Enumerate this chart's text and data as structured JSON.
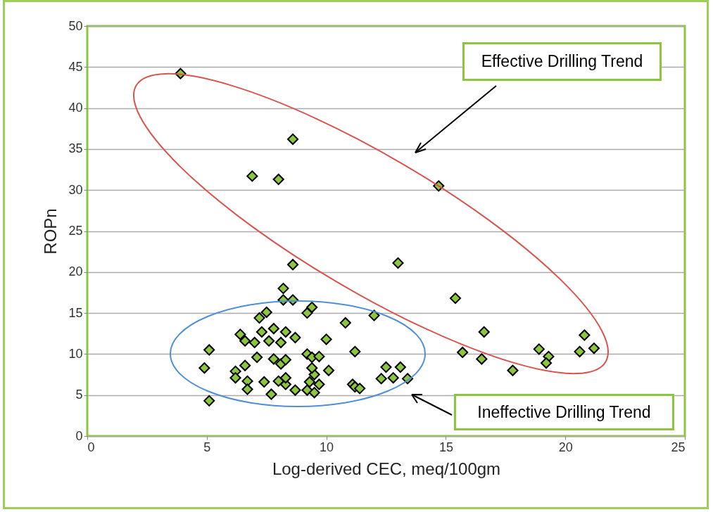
{
  "chart_data": {
    "type": "scatter",
    "xlabel": "Log-derived CEC, meq/100gm",
    "ylabel": "ROPn",
    "xlim": [
      0,
      25
    ],
    "xticks": [
      0,
      5,
      10,
      15,
      20,
      25
    ],
    "ylim": [
      0,
      50
    ],
    "yticks": [
      0,
      5,
      10,
      15,
      20,
      25,
      30,
      35,
      40,
      45,
      50
    ],
    "grid": "y",
    "marker": "diamond",
    "legend": false,
    "annotations": [
      "Effective Drilling Trend",
      "Ineffective Drilling Trend"
    ],
    "series": [
      {
        "color": "#8cc63f",
        "x": [
          3.9,
          8.6,
          6.9,
          8.0,
          14.7,
          8.6,
          13.0,
          8.2,
          12.0,
          15.4,
          10.8,
          15.7,
          16.6,
          16.5,
          17.8,
          18.9,
          19.3,
          19.2,
          20.6,
          20.8,
          21.2,
          11.2,
          10.0,
          10.1,
          11.1,
          11.2,
          11.4,
          12.5,
          13.1,
          12.3,
          12.8,
          13.4,
          8.2,
          8.6,
          9.2,
          9.4,
          7.5,
          7.2,
          7.3,
          7.8,
          8.3,
          8.7,
          6.4,
          6.6,
          7.0,
          7.6,
          8.1,
          5.1,
          4.9,
          5.1,
          7.1,
          7.8,
          8.1,
          8.3,
          9.2,
          9.4,
          9.7,
          6.6,
          6.2,
          6.2,
          6.7,
          6.7,
          7.4,
          8.0,
          8.3,
          7.7,
          8.7,
          9.3,
          9.5,
          9.7,
          9.2,
          9.5,
          9.4,
          8.3
        ],
        "values": [
          44.2,
          36.2,
          31.7,
          31.3,
          30.5,
          20.9,
          21.1,
          18.0,
          14.7,
          16.8,
          13.8,
          10.2,
          12.7,
          9.4,
          8.0,
          10.6,
          9.7,
          8.9,
          10.3,
          12.3,
          10.7,
          10.3,
          11.8,
          8.0,
          6.3,
          6.0,
          5.8,
          8.4,
          8.4,
          7.0,
          7.1,
          7.0,
          16.6,
          16.6,
          15.0,
          15.7,
          15.1,
          14.4,
          12.7,
          13.1,
          12.7,
          12.0,
          12.4,
          11.6,
          11.4,
          11.6,
          11.4,
          10.5,
          8.3,
          4.3,
          9.6,
          9.4,
          8.8,
          9.3,
          10.0,
          9.6,
          9.7,
          8.6,
          7.9,
          7.1,
          6.7,
          5.7,
          6.6,
          6.7,
          6.3,
          5.1,
          5.6,
          6.6,
          7.5,
          6.3,
          5.6,
          5.3,
          8.3,
          7.1
        ]
      }
    ]
  }
}
